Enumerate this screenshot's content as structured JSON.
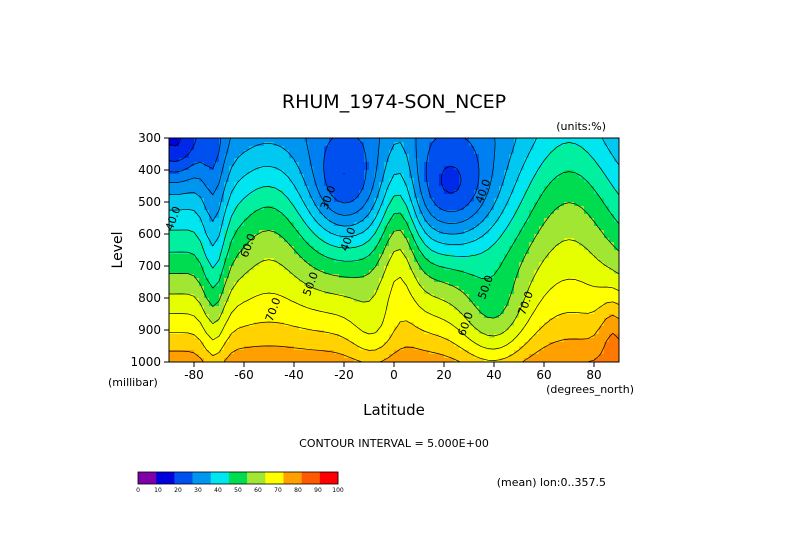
{
  "chart_data": {
    "type": "heatmap",
    "title": "RHUM_1974-SON_NCEP",
    "units_label": "(units:%)",
    "xlabel": "Latitude",
    "x_units": "(degrees_north)",
    "ylabel": "Level",
    "y_units": "(millibar)",
    "xlim": [
      -90,
      90
    ],
    "ylim": [
      1000,
      300
    ],
    "x_ticks": [
      -80,
      -60,
      -40,
      -20,
      0,
      20,
      40,
      60,
      80
    ],
    "y_ticks": [
      300,
      400,
      500,
      600,
      700,
      800,
      900,
      1000
    ],
    "contour_interval_text": "CONTOUR INTERVAL = 5.000E+00",
    "mean_note": "(mean) lon:0..357.5",
    "contour_labels": [
      {
        "text": "30.0",
        "lat": -25,
        "lev": 490
      },
      {
        "text": "40.0",
        "lat": -17,
        "lev": 620
      },
      {
        "text": "40.0",
        "lat": 37,
        "lev": 470
      },
      {
        "text": "40.0",
        "lat": -87,
        "lev": 555
      },
      {
        "text": "50.0",
        "lat": -32,
        "lev": 760
      },
      {
        "text": "50.0",
        "lat": 38,
        "lev": 770
      },
      {
        "text": "60.0",
        "lat": -57,
        "lev": 640
      },
      {
        "text": "60.0",
        "lat": 30,
        "lev": 885
      },
      {
        "text": "70.0",
        "lat": -47,
        "lev": 840
      },
      {
        "text": "70.0",
        "lat": 54,
        "lev": 820
      }
    ],
    "colorbar": {
      "ticks": [
        0,
        10,
        20,
        30,
        40,
        50,
        60,
        70,
        80,
        90,
        100
      ],
      "colors": [
        "#8000a8",
        "#0000dc",
        "#0050f0",
        "#0096f0",
        "#00e6f0",
        "#00dc50",
        "#a0e632",
        "#ffff00",
        "#ffa000",
        "#ff5a00",
        "#ff0000"
      ]
    },
    "colormap": {
      "levels": [
        10,
        15,
        20,
        25,
        30,
        35,
        40,
        45,
        50,
        55,
        60,
        65,
        70,
        75,
        80,
        85,
        90
      ],
      "colors": [
        "#8000a8",
        "#0000dc",
        "#0028e8",
        "#0050f0",
        "#0080f0",
        "#0096f0",
        "#00c8f0",
        "#00e6f0",
        "#00f0a0",
        "#00dc50",
        "#a0e632",
        "#e6ff00",
        "#ffff00",
        "#ffd200",
        "#ffa000",
        "#ff7800",
        "#ff5a00",
        "#ff0000"
      ]
    }
  }
}
